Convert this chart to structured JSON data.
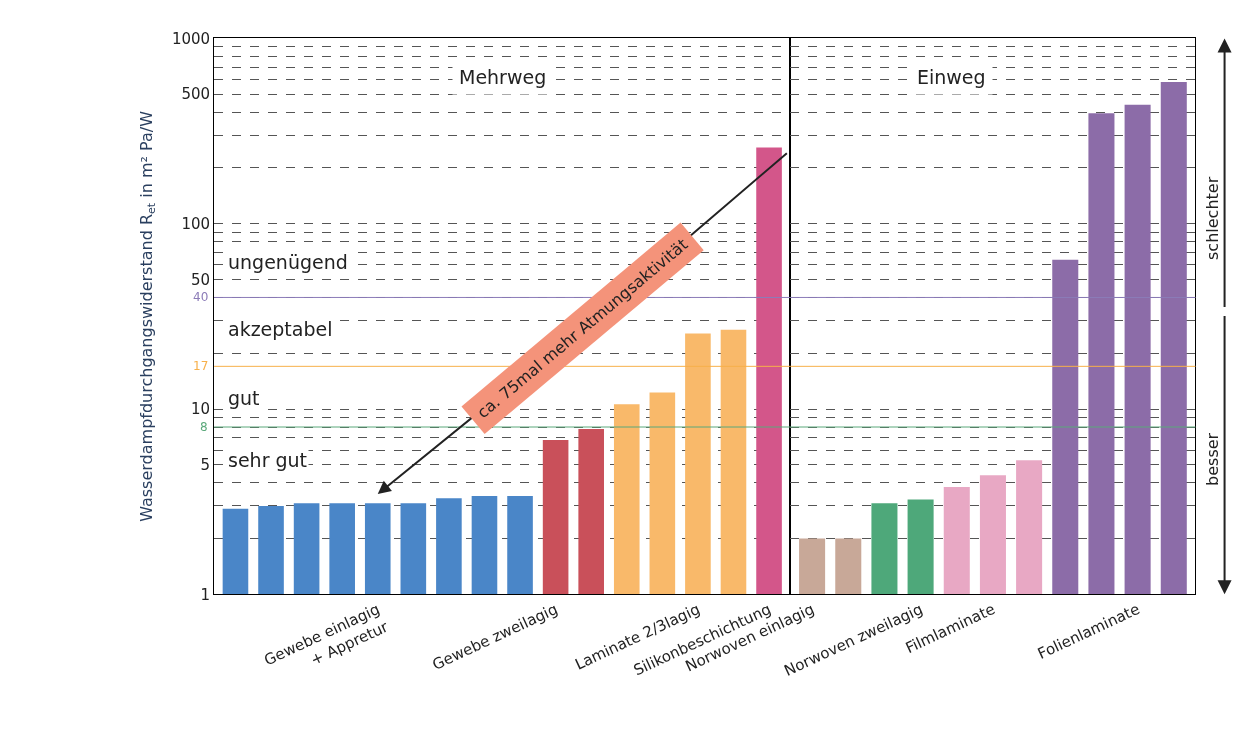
{
  "chart_data": [
    {
      "type": "bar",
      "title": "Mehrweg",
      "ylabel": "Wasserdampfdurchgangswiderstand R$_{et}$ in m² Pa/W",
      "log": true,
      "grid": "y",
      "ylim": [
        1,
        1000
      ],
      "yticks": [
        1,
        {
          "value": 2,
          "label": null
        },
        {
          "value": 3,
          "label": null
        },
        {
          "value": 4,
          "label": null
        },
        5,
        {
          "value": 6,
          "label": null
        },
        {
          "value": 7,
          "label": null
        },
        {
          "value": 8,
          "label": null
        },
        {
          "value": 9,
          "label": null
        },
        10,
        {
          "value": 20,
          "label": null
        },
        {
          "value": 30,
          "label": null
        },
        {
          "value": 40,
          "label": null
        },
        50,
        {
          "value": 60,
          "label": null
        },
        {
          "value": 70,
          "label": null
        },
        {
          "value": 80,
          "label": null
        },
        {
          "value": 90,
          "label": null
        },
        100,
        {
          "value": 200,
          "label": null
        },
        {
          "value": 300,
          "label": null
        },
        {
          "value": 400,
          "label": null
        },
        500,
        {
          "value": 600,
          "label": null
        },
        {
          "value": 700,
          "label": null
        },
        {
          "value": 800,
          "label": null
        },
        {
          "value": 900,
          "label": null
        },
        1000
      ],
      "categories": [
        null,
        null,
        null,
        null,
        "Gewebe einlagig\n+ Appretur",
        null,
        null,
        null,
        null,
        "Gewebe zweilagig",
        null,
        null,
        null,
        "Laminate 2/3lagig",
        null,
        "Silikonbeschichtung"
      ],
      "values": [
        2.9,
        3.0,
        3.1,
        3.1,
        3.1,
        3.1,
        3.3,
        3.4,
        3.4,
        6.8,
        7.8,
        10.6,
        12.3,
        25.6,
        26.8,
        258
      ],
      "colors": [
        "#4a86c8",
        "#4a86c8",
        "#4a86c8",
        "#4a86c8",
        "#4a86c8",
        "#4a86c8",
        "#4a86c8",
        "#4a86c8",
        "#4a86c8",
        "#c9505a",
        "#c9505a",
        "#f9b96a",
        "#f9b96a",
        "#f9b96a",
        "#f9b96a",
        "#d3568a"
      ],
      "ref_lines": [
        {
          "axis": "y",
          "value": 40,
          "label": "40",
          "color": "#8c7cb8"
        },
        {
          "axis": "y",
          "value": 17,
          "label": "17",
          "color": "#f7b04a"
        },
        {
          "axis": "y",
          "value": 8,
          "label": "8",
          "color": "#5aa87a"
        }
      ],
      "annotations": [
        "ungenügend",
        "akzeptabel",
        "gut",
        "sehr gut",
        "ca. 75mal mehr Atmungsaktivität"
      ]
    },
    {
      "type": "bar",
      "title": "Einweg",
      "log": true,
      "grid": "y",
      "ylim": [
        1,
        1000
      ],
      "tick_labels": "x",
      "yticks": [
        1,
        {
          "value": 2,
          "label": null
        },
        {
          "value": 3,
          "label": null
        },
        {
          "value": 4,
          "label": null
        },
        5,
        {
          "value": 6,
          "label": null
        },
        {
          "value": 7,
          "label": null
        },
        {
          "value": 8,
          "label": null
        },
        {
          "value": 9,
          "label": null
        },
        10,
        {
          "value": 20,
          "label": null
        },
        {
          "value": 30,
          "label": null
        },
        {
          "value": 40,
          "label": null
        },
        50,
        {
          "value": 60,
          "label": null
        },
        {
          "value": 70,
          "label": null
        },
        {
          "value": 80,
          "label": null
        },
        {
          "value": 90,
          "label": null
        },
        100,
        {
          "value": 200,
          "label": null
        },
        {
          "value": 300,
          "label": null
        },
        {
          "value": 400,
          "label": null
        },
        500,
        {
          "value": 600,
          "label": null
        },
        {
          "value": 700,
          "label": null
        },
        {
          "value": 800,
          "label": null
        },
        {
          "value": 900,
          "label": null
        },
        1000
      ],
      "categories": [
        "Norwoven einlagig",
        null,
        null,
        "Norwoven zweilagig",
        null,
        "Filmlaminate",
        null,
        null,
        null,
        "Folienlaminate",
        null
      ],
      "values": [
        2.0,
        2.0,
        3.1,
        3.25,
        3.8,
        4.4,
        5.3,
        64,
        394,
        439,
        582
      ],
      "colors": [
        "#c8a898",
        "#c8a898",
        "#4ea87a",
        "#4ea87a",
        "#e8a8c4",
        "#e8a8c4",
        "#e8a8c4",
        "#8c6ca8",
        "#8c6ca8",
        "#8c6ca8",
        "#8c6ca8"
      ],
      "ref_lines": [
        {
          "axis": "y",
          "value": 40,
          "color": "#8c7cb8"
        },
        {
          "axis": "y",
          "value": 17,
          "color": "#f7b04a"
        },
        {
          "axis": "y",
          "value": 8,
          "color": "#5aa87a"
        }
      ],
      "annotations": [
        "schlechter",
        "besser"
      ]
    }
  ]
}
